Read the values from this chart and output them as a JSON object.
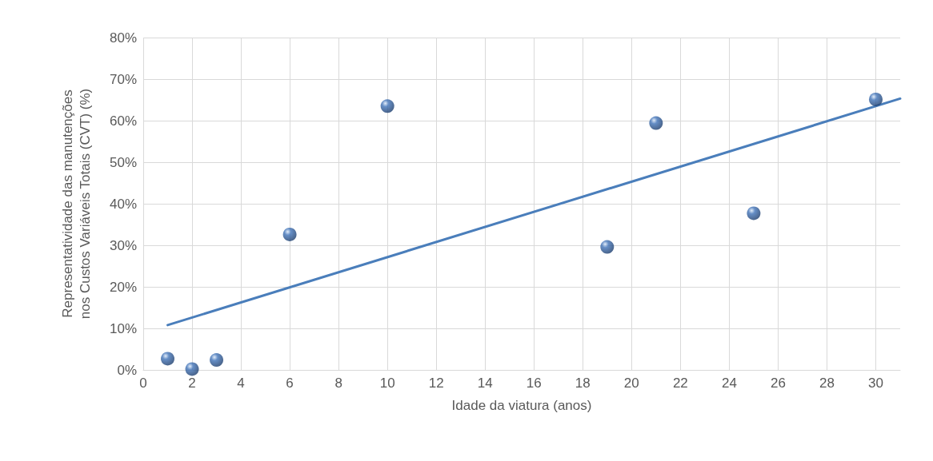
{
  "chart_data": {
    "type": "scatter",
    "xlabel": "Idade da viatura (anos)",
    "ylabel": "Representatividade das manutenções nos Custos Variáveis Totais (CVT) (%)",
    "x": [
      1,
      2,
      3,
      6,
      10,
      19,
      21,
      25,
      30
    ],
    "series": [
      {
        "type": "scatter",
        "color": "#3f72b8",
        "marker": "circle",
        "values": [
          2.7,
          0.2,
          2.4,
          32.6,
          63.5,
          29.6,
          59.4,
          37.7,
          65.1
        ]
      },
      {
        "type": "line",
        "color": "#4a7ebb",
        "marker": "none",
        "line_style": "solid",
        "x": [
          1,
          31
        ],
        "values": [
          10.8,
          65.3
        ]
      }
    ],
    "xlim": [
      0,
      31
    ],
    "xticks": [
      0,
      2,
      4,
      6,
      8,
      10,
      12,
      14,
      16,
      18,
      20,
      22,
      24,
      26,
      28,
      30
    ],
    "ylim": [
      0,
      80
    ],
    "yticks": [
      {
        "value": 0,
        "label": "0%"
      },
      {
        "value": 10,
        "label": "10%"
      },
      {
        "value": 20,
        "label": "20%"
      },
      {
        "value": 30,
        "label": "30%"
      },
      {
        "value": 40,
        "label": "40%"
      },
      {
        "value": 50,
        "label": "50%"
      },
      {
        "value": 60,
        "label": "60%"
      },
      {
        "value": 70,
        "label": "70%"
      },
      {
        "value": 80,
        "label": "80%"
      }
    ],
    "grid": true
  }
}
